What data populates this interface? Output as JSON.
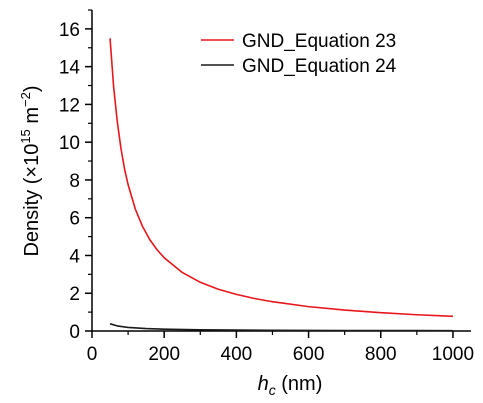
{
  "chart_data": {
    "type": "line",
    "xlim": [
      0,
      1050
    ],
    "ylim": [
      0,
      17
    ],
    "x_ticks": [
      0,
      200,
      400,
      600,
      800,
      1000
    ],
    "y_ticks": [
      0,
      2,
      4,
      6,
      8,
      10,
      12,
      14,
      16
    ],
    "x_tick_labels": [
      "0",
      "200",
      "400",
      "600",
      "800",
      "1000"
    ],
    "y_tick_labels": [
      "0",
      "2",
      "4",
      "6",
      "8",
      "10",
      "12",
      "14",
      "16"
    ],
    "xlabel": {
      "var": "h",
      "sub": "c",
      "unit": " (nm)"
    },
    "ylabel": {
      "main": "Density (×10",
      "sup1": "15",
      "mid": " m",
      "sup2": "−2",
      "end": ")"
    },
    "grid": false,
    "legend_position": "top-right",
    "series": [
      {
        "name": "GND_Equation 23",
        "color": "#e8161b",
        "x": [
          50,
          60,
          70,
          80,
          90,
          100,
          120,
          140,
          160,
          180,
          200,
          250,
          300,
          350,
          400,
          450,
          500,
          600,
          700,
          800,
          900,
          1000
        ],
        "y": [
          15.5,
          12.9,
          11.1,
          9.7,
          8.6,
          7.75,
          6.46,
          5.54,
          4.84,
          4.31,
          3.88,
          3.1,
          2.58,
          2.21,
          1.94,
          1.72,
          1.55,
          1.29,
          1.11,
          0.97,
          0.86,
          0.78
        ]
      },
      {
        "name": "GND_Equation 24",
        "color": "#1a1a1a",
        "x": [
          50,
          70,
          100,
          150,
          200,
          300,
          400,
          500,
          600,
          700,
          800,
          900,
          1000
        ],
        "y": [
          0.38,
          0.27,
          0.19,
          0.13,
          0.095,
          0.063,
          0.047,
          0.038,
          0.032,
          0.027,
          0.024,
          0.021,
          0.019
        ]
      }
    ]
  }
}
